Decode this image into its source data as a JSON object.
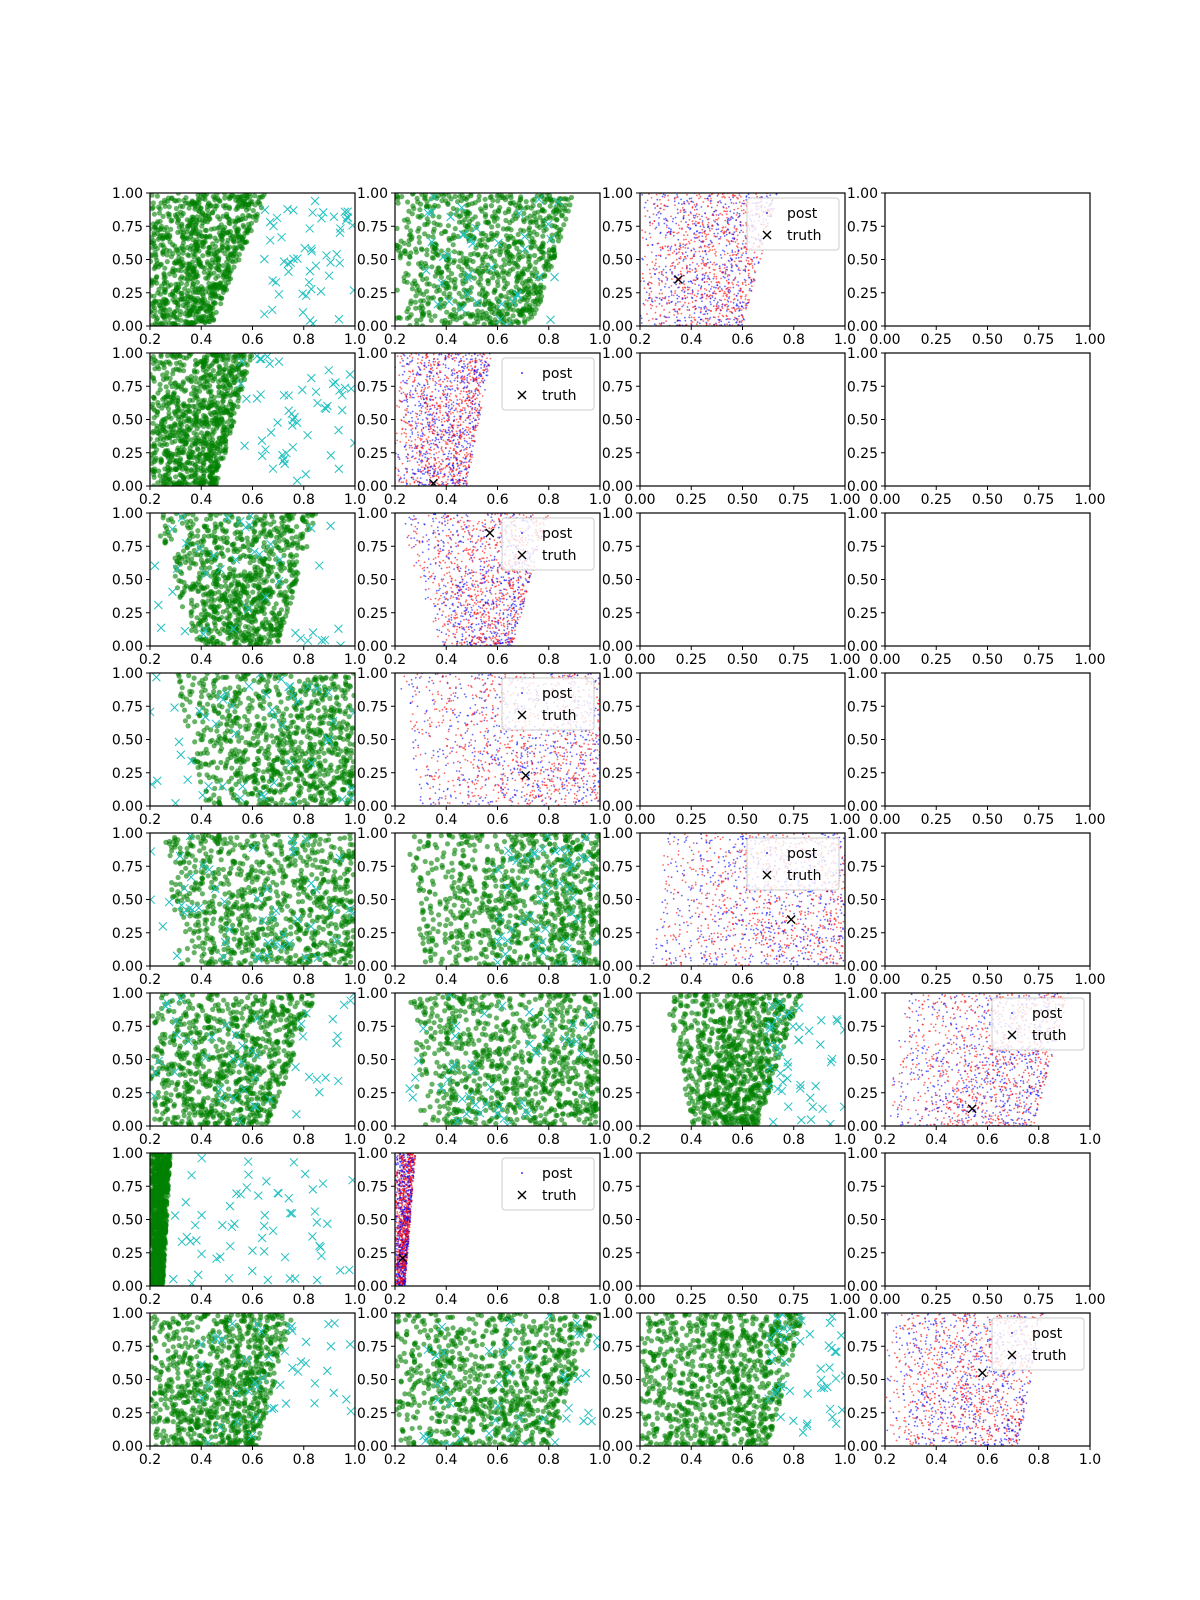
{
  "figure": {
    "rows": 8,
    "cols": 4,
    "colors": {
      "prior_dots": "#008000",
      "prior_crosses": "#20c0c0",
      "post_a": "#ff0000",
      "post_b": "#0000ff",
      "truth": "#000000",
      "axes": "#000000",
      "background": "#ffffff"
    }
  },
  "legend_labels": {
    "post": "post",
    "truth": "truth"
  },
  "chart_data": [
    {
      "row": 0,
      "col": 0,
      "type": "scatter",
      "kind": "prior",
      "xlim": [
        0.2,
        1.0
      ],
      "ylim": [
        0,
        1
      ],
      "xticks": [
        "0.2",
        "0.4",
        "0.6",
        "0.8",
        "1.0"
      ],
      "yticks": [
        "0.00",
        "0.25",
        "0.50",
        "0.75",
        "1.00"
      ],
      "region": {
        "x_left_at_y0": 0.2,
        "x_right_at_y0": 0.44,
        "x_left_at_y1": 0.2,
        "x_right_at_y1": 0.66
      },
      "outliers_x": [
        0.64,
        1.0
      ],
      "outliers": 54
    },
    {
      "row": 0,
      "col": 1,
      "type": "scatter",
      "kind": "prior",
      "xlim": [
        0.2,
        1.0
      ],
      "ylim": [
        0,
        1
      ],
      "xticks": [
        "0.2",
        "0.4",
        "0.6",
        "0.8",
        "1.0"
      ],
      "yticks": [
        "0.00",
        "0.25",
        "0.50",
        "0.75",
        "1.00"
      ],
      "region": {
        "x_left_at_y0": 0.2,
        "x_right_at_y0": 0.74,
        "x_left_at_y1": 0.2,
        "x_right_at_y1": 0.9
      },
      "outliers_x": [
        0.3,
        0.85
      ],
      "outliers": 40
    },
    {
      "row": 0,
      "col": 2,
      "type": "scatter",
      "kind": "posterior",
      "legend": "upper right",
      "xlim": [
        0.2,
        1.0
      ],
      "ylim": [
        0,
        1
      ],
      "xticks": [
        "0.2",
        "0.4",
        "0.6",
        "0.8",
        "1.0"
      ],
      "yticks": [
        "0.00",
        "0.25",
        "0.50",
        "0.75",
        "1.00"
      ],
      "region": {
        "x_left_at_y0": 0.2,
        "x_right_at_y0": 0.6,
        "x_left_at_y1": 0.2,
        "x_right_at_y1": 0.74
      },
      "truth": {
        "x": 0.35,
        "y": 0.35
      }
    },
    {
      "row": 0,
      "col": 3,
      "type": "scatter",
      "kind": "empty",
      "xlim": [
        0,
        1
      ],
      "ylim": [
        0,
        1
      ],
      "xticks": [
        "0.00",
        "0.25",
        "0.50",
        "0.75",
        "1.00"
      ],
      "yticks": [
        "0.00",
        "0.25",
        "0.50",
        "0.75",
        "1.00"
      ]
    },
    {
      "row": 1,
      "col": 0,
      "type": "scatter",
      "kind": "prior",
      "xlim": [
        0.2,
        1.0
      ],
      "ylim": [
        0,
        1
      ],
      "xticks": [
        "0.2",
        "0.4",
        "0.6",
        "0.8",
        "1.0"
      ],
      "yticks": [
        "0.00",
        "0.25",
        "0.50",
        "0.75",
        "1.00"
      ],
      "region": {
        "x_left_at_y0": 0.2,
        "x_right_at_y0": 0.46,
        "x_left_at_y1": 0.2,
        "x_right_at_y1": 0.6
      },
      "outliers_x": [
        0.55,
        1.0
      ],
      "outliers": 55
    },
    {
      "row": 1,
      "col": 1,
      "type": "scatter",
      "kind": "posterior",
      "legend": "upper right",
      "xlim": [
        0.2,
        1.0
      ],
      "ylim": [
        0,
        1
      ],
      "xticks": [
        "0.2",
        "0.4",
        "0.6",
        "0.8",
        "1.0"
      ],
      "yticks": [
        "0.00",
        "0.25",
        "0.50",
        "0.75",
        "1.00"
      ],
      "region": {
        "x_left_at_y0": 0.2,
        "x_right_at_y0": 0.48,
        "x_left_at_y1": 0.2,
        "x_right_at_y1": 0.58
      },
      "truth": {
        "x": 0.35,
        "y": 0.02
      }
    },
    {
      "row": 1,
      "col": 2,
      "type": "scatter",
      "kind": "empty",
      "xlim": [
        0,
        1
      ],
      "ylim": [
        0,
        1
      ],
      "xticks": [
        "0.00",
        "0.25",
        "0.50",
        "0.75",
        "1.00"
      ],
      "yticks": [
        "0.00",
        "0.25",
        "0.50",
        "0.75",
        "1.00"
      ]
    },
    {
      "row": 1,
      "col": 3,
      "type": "scatter",
      "kind": "empty",
      "xlim": [
        0,
        1
      ],
      "ylim": [
        0,
        1
      ],
      "xticks": [
        "0.00",
        "0.25",
        "0.50",
        "0.75",
        "1.00"
      ],
      "yticks": [
        "0.00",
        "0.25",
        "0.50",
        "0.75",
        "1.00"
      ]
    },
    {
      "row": 2,
      "col": 0,
      "type": "scatter",
      "kind": "prior",
      "xlim": [
        0.2,
        1.0
      ],
      "ylim": [
        0,
        1
      ],
      "xticks": [
        "0.2",
        "0.4",
        "0.6",
        "0.8",
        "1.0"
      ],
      "yticks": [
        "0.00",
        "0.25",
        "0.50",
        "0.75",
        "1.00"
      ],
      "region": {
        "x_left_at_y0": 0.38,
        "x_right_at_y0": 0.7,
        "x_left_at_y1": 0.2,
        "x_right_at_y1": 0.85
      },
      "outliers_x": [
        0.2,
        1.0
      ],
      "outliers": 40
    },
    {
      "row": 2,
      "col": 1,
      "type": "scatter",
      "kind": "posterior",
      "legend": "upper right",
      "xlim": [
        0.2,
        1.0
      ],
      "ylim": [
        0,
        1
      ],
      "xticks": [
        "0.2",
        "0.4",
        "0.6",
        "0.8",
        "1.0"
      ],
      "yticks": [
        "0.00",
        "0.25",
        "0.50",
        "0.75",
        "1.00"
      ],
      "region": {
        "x_left_at_y0": 0.38,
        "x_right_at_y0": 0.66,
        "x_left_at_y1": 0.2,
        "x_right_at_y1": 0.8
      },
      "truth": {
        "x": 0.57,
        "y": 0.85
      }
    },
    {
      "row": 2,
      "col": 2,
      "type": "scatter",
      "kind": "empty",
      "xlim": [
        0,
        1
      ],
      "ylim": [
        0,
        1
      ],
      "xticks": [
        "0.00",
        "0.25",
        "0.50",
        "0.75",
        "1.00"
      ],
      "yticks": [
        "0.00",
        "0.25",
        "0.50",
        "0.75",
        "1.00"
      ]
    },
    {
      "row": 2,
      "col": 3,
      "type": "scatter",
      "kind": "empty",
      "xlim": [
        0,
        1
      ],
      "ylim": [
        0,
        1
      ],
      "xticks": [
        "0.00",
        "0.25",
        "0.50",
        "0.75",
        "1.00"
      ],
      "yticks": [
        "0.00",
        "0.25",
        "0.50",
        "0.75",
        "1.00"
      ]
    },
    {
      "row": 3,
      "col": 0,
      "type": "scatter",
      "kind": "prior",
      "xlim": [
        0.2,
        1.0
      ],
      "ylim": [
        0,
        1
      ],
      "xticks": [
        "0.2",
        "0.4",
        "0.6",
        "0.8",
        "1.0"
      ],
      "yticks": [
        "0.00",
        "0.25",
        "0.50",
        "0.75",
        "1.00"
      ],
      "region": {
        "x_left_at_y0": 0.4,
        "x_right_at_y0": 1.0,
        "x_left_at_y1": 0.3,
        "x_right_at_y1": 1.0
      },
      "outliers_x": [
        0.2,
        1.0
      ],
      "outliers": 50
    },
    {
      "row": 3,
      "col": 1,
      "type": "scatter",
      "kind": "posterior",
      "legend": "upper right",
      "xlim": [
        0.2,
        1.0
      ],
      "ylim": [
        0,
        1
      ],
      "xticks": [
        "0.2",
        "0.4",
        "0.6",
        "0.8",
        "1.0"
      ],
      "yticks": [
        "0.00",
        "0.25",
        "0.50",
        "0.75",
        "1.00"
      ],
      "region": {
        "x_left_at_y0": 0.3,
        "x_right_at_y0": 1.0,
        "x_left_at_y1": 0.2,
        "x_right_at_y1": 1.0
      },
      "truth": {
        "x": 0.71,
        "y": 0.23
      }
    },
    {
      "row": 3,
      "col": 2,
      "type": "scatter",
      "kind": "empty",
      "xlim": [
        0,
        1
      ],
      "ylim": [
        0,
        1
      ],
      "xticks": [
        "0.00",
        "0.25",
        "0.50",
        "0.75",
        "1.00"
      ],
      "yticks": [
        "0.00",
        "0.25",
        "0.50",
        "0.75",
        "1.00"
      ]
    },
    {
      "row": 3,
      "col": 3,
      "type": "scatter",
      "kind": "empty",
      "xlim": [
        0,
        1
      ],
      "ylim": [
        0,
        1
      ],
      "xticks": [
        "0.00",
        "0.25",
        "0.50",
        "0.75",
        "1.00"
      ],
      "yticks": [
        "0.00",
        "0.25",
        "0.50",
        "0.75",
        "1.00"
      ]
    },
    {
      "row": 4,
      "col": 0,
      "type": "scatter",
      "kind": "prior",
      "xlim": [
        0.2,
        1.0
      ],
      "ylim": [
        0,
        1
      ],
      "xticks": [
        "0.2",
        "0.4",
        "0.6",
        "0.8",
        "1.0"
      ],
      "yticks": [
        "0.00",
        "0.25",
        "0.50",
        "0.75",
        "1.00"
      ],
      "region": {
        "x_left_at_y0": 0.3,
        "x_right_at_y0": 1.0,
        "x_left_at_y1": 0.25,
        "x_right_at_y1": 1.0
      },
      "outliers_x": [
        0.2,
        1.0
      ],
      "outliers": 50
    },
    {
      "row": 4,
      "col": 1,
      "type": "scatter",
      "kind": "prior",
      "xlim": [
        0.2,
        1.0
      ],
      "ylim": [
        0,
        1
      ],
      "xticks": [
        "0.2",
        "0.4",
        "0.6",
        "0.8",
        "1.0"
      ],
      "yticks": [
        "0.00",
        "0.25",
        "0.50",
        "0.75",
        "1.00"
      ],
      "region": {
        "x_left_at_y0": 0.3,
        "x_right_at_y0": 1.0,
        "x_left_at_y1": 0.25,
        "x_right_at_y1": 1.0
      },
      "outliers_x": [
        0.6,
        1.0
      ],
      "outliers": 50
    },
    {
      "row": 4,
      "col": 2,
      "type": "scatter",
      "kind": "posterior",
      "legend": "upper right",
      "xlim": [
        0.2,
        1.0
      ],
      "ylim": [
        0,
        1
      ],
      "xticks": [
        "0.2",
        "0.4",
        "0.6",
        "0.8",
        "1.0"
      ],
      "yticks": [
        "0.00",
        "0.25",
        "0.50",
        "0.75",
        "1.00"
      ],
      "region": {
        "x_left_at_y0": 0.24,
        "x_right_at_y0": 1.0,
        "x_left_at_y1": 0.3,
        "x_right_at_y1": 1.0
      },
      "truth": {
        "x": 0.79,
        "y": 0.35
      }
    },
    {
      "row": 4,
      "col": 3,
      "type": "scatter",
      "kind": "empty",
      "xlim": [
        0,
        1
      ],
      "ylim": [
        0,
        1
      ],
      "xticks": [
        "0.00",
        "0.25",
        "0.50",
        "0.75",
        "1.00"
      ],
      "yticks": [
        "0.00",
        "0.25",
        "0.50",
        "0.75",
        "1.00"
      ]
    },
    {
      "row": 5,
      "col": 0,
      "type": "scatter",
      "kind": "prior",
      "xlim": [
        0.2,
        1.0
      ],
      "ylim": [
        0,
        1
      ],
      "xticks": [
        "0.2",
        "0.4",
        "0.6",
        "0.8",
        "1.0"
      ],
      "yticks": [
        "0.00",
        "0.25",
        "0.50",
        "0.75",
        "1.00"
      ],
      "region": {
        "x_left_at_y0": 0.2,
        "x_right_at_y0": 0.66,
        "x_left_at_y1": 0.2,
        "x_right_at_y1": 0.85
      },
      "outliers_x": [
        0.2,
        1.0
      ],
      "outliers": 45
    },
    {
      "row": 5,
      "col": 1,
      "type": "scatter",
      "kind": "prior",
      "xlim": [
        0.2,
        1.0
      ],
      "ylim": [
        0,
        1
      ],
      "xticks": [
        "0.2",
        "0.4",
        "0.6",
        "0.8",
        "1.0"
      ],
      "yticks": [
        "0.00",
        "0.25",
        "0.50",
        "0.75",
        "1.00"
      ],
      "region": {
        "x_left_at_y0": 0.3,
        "x_right_at_y0": 1.0,
        "x_left_at_y1": 0.25,
        "x_right_at_y1": 1.0
      },
      "outliers_x": [
        0.25,
        1.0
      ],
      "outliers": 45
    },
    {
      "row": 5,
      "col": 2,
      "type": "scatter",
      "kind": "prior",
      "xlim": [
        0.2,
        1.0
      ],
      "ylim": [
        0,
        1
      ],
      "xticks": [
        "0.2",
        "0.4",
        "0.6",
        "0.8",
        "1.0"
      ],
      "yticks": [
        "0.00",
        "0.25",
        "0.50",
        "0.75",
        "1.00"
      ],
      "region": {
        "x_left_at_y0": 0.4,
        "x_right_at_y0": 0.66,
        "x_left_at_y1": 0.3,
        "x_right_at_y1": 0.83
      },
      "outliers_x": [
        0.7,
        1.0
      ],
      "outliers": 45
    },
    {
      "row": 5,
      "col": 3,
      "type": "scatter",
      "kind": "posterior",
      "legend": "upper right",
      "xlim": [
        0.2,
        1.0
      ],
      "ylim": [
        0,
        1
      ],
      "xticks": [
        "0.2",
        "0.4",
        "0.6",
        "0.8",
        "1.0"
      ],
      "yticks": [
        "0.00",
        "0.25",
        "0.50",
        "0.75",
        "1.00"
      ],
      "region": {
        "x_left_at_y0": 0.2,
        "x_right_at_y0": 0.78,
        "x_left_at_y1": 0.28,
        "x_right_at_y1": 0.92
      },
      "truth": {
        "x": 0.54,
        "y": 0.13
      }
    },
    {
      "row": 6,
      "col": 0,
      "type": "scatter",
      "kind": "prior",
      "xlim": [
        0.2,
        1.0
      ],
      "ylim": [
        0,
        1
      ],
      "xticks": [
        "0.2",
        "0.4",
        "0.6",
        "0.8",
        "1.0"
      ],
      "yticks": [
        "0.00",
        "0.25",
        "0.50",
        "0.75",
        "1.00"
      ],
      "region": {
        "x_left_at_y0": 0.2,
        "x_right_at_y0": 0.25,
        "x_left_at_y1": 0.2,
        "x_right_at_y1": 0.28
      },
      "outliers_x": [
        0.25,
        1.0
      ],
      "outliers": 60
    },
    {
      "row": 6,
      "col": 1,
      "type": "scatter",
      "kind": "posterior",
      "legend": "upper right",
      "xlim": [
        0.2,
        1.0
      ],
      "ylim": [
        0,
        1
      ],
      "xticks": [
        "0.2",
        "0.4",
        "0.6",
        "0.8",
        "1.0"
      ],
      "yticks": [
        "0.00",
        "0.25",
        "0.50",
        "0.75",
        "1.00"
      ],
      "region": {
        "x_left_at_y0": 0.2,
        "x_right_at_y0": 0.24,
        "x_left_at_y1": 0.2,
        "x_right_at_y1": 0.28
      },
      "truth": {
        "x": 0.23,
        "y": 0.21
      }
    },
    {
      "row": 6,
      "col": 2,
      "type": "scatter",
      "kind": "empty",
      "xlim": [
        0,
        1
      ],
      "ylim": [
        0,
        1
      ],
      "xticks": [
        "0.00",
        "0.25",
        "0.50",
        "0.75",
        "1.00"
      ],
      "yticks": [
        "0.00",
        "0.25",
        "0.50",
        "0.75",
        "1.00"
      ]
    },
    {
      "row": 6,
      "col": 3,
      "type": "scatter",
      "kind": "empty",
      "xlim": [
        0,
        1
      ],
      "ylim": [
        0,
        1
      ],
      "xticks": [
        "0.00",
        "0.25",
        "0.50",
        "0.75",
        "1.00"
      ],
      "yticks": [
        "0.00",
        "0.25",
        "0.50",
        "0.75",
        "1.00"
      ]
    },
    {
      "row": 7,
      "col": 0,
      "type": "scatter",
      "kind": "prior",
      "xlim": [
        0.2,
        1.0
      ],
      "ylim": [
        0,
        1
      ],
      "xticks": [
        "0.2",
        "0.4",
        "0.6",
        "0.8",
        "1.0"
      ],
      "yticks": [
        "0.00",
        "0.25",
        "0.50",
        "0.75",
        "1.00"
      ],
      "region": {
        "x_left_at_y0": 0.2,
        "x_right_at_y0": 0.62,
        "x_left_at_y1": 0.2,
        "x_right_at_y1": 0.76
      },
      "outliers_x": [
        0.4,
        1.0
      ],
      "outliers": 45
    },
    {
      "row": 7,
      "col": 1,
      "type": "scatter",
      "kind": "prior",
      "xlim": [
        0.2,
        1.0
      ],
      "ylim": [
        0,
        1
      ],
      "xticks": [
        "0.2",
        "0.4",
        "0.6",
        "0.8",
        "1.0"
      ],
      "yticks": [
        "0.00",
        "0.25",
        "0.50",
        "0.75",
        "1.00"
      ],
      "region": {
        "x_left_at_y0": 0.2,
        "x_right_at_y0": 0.8,
        "x_left_at_y1": 0.2,
        "x_right_at_y1": 1.0
      },
      "outliers_x": [
        0.3,
        1.0
      ],
      "outliers": 45
    },
    {
      "row": 7,
      "col": 2,
      "type": "scatter",
      "kind": "prior",
      "xlim": [
        0.2,
        1.0
      ],
      "ylim": [
        0,
        1
      ],
      "xticks": [
        "0.2",
        "0.4",
        "0.6",
        "0.8",
        "1.0"
      ],
      "yticks": [
        "0.00",
        "0.25",
        "0.50",
        "0.75",
        "1.00"
      ],
      "region": {
        "x_left_at_y0": 0.2,
        "x_right_at_y0": 0.7,
        "x_left_at_y1": 0.2,
        "x_right_at_y1": 0.84
      },
      "outliers_x": [
        0.7,
        1.0
      ],
      "outliers": 45
    },
    {
      "row": 7,
      "col": 3,
      "type": "scatter",
      "kind": "posterior",
      "legend": "upper right",
      "xlim": [
        0.2,
        1.0
      ],
      "ylim": [
        0,
        1
      ],
      "xticks": [
        "0.2",
        "0.4",
        "0.6",
        "0.8",
        "1.0"
      ],
      "yticks": [
        "0.00",
        "0.25",
        "0.50",
        "0.75",
        "1.00"
      ],
      "region": {
        "x_left_at_y0": 0.2,
        "x_right_at_y0": 0.72,
        "x_left_at_y1": 0.2,
        "x_right_at_y1": 0.82
      },
      "truth": {
        "x": 0.58,
        "y": 0.55
      }
    }
  ]
}
